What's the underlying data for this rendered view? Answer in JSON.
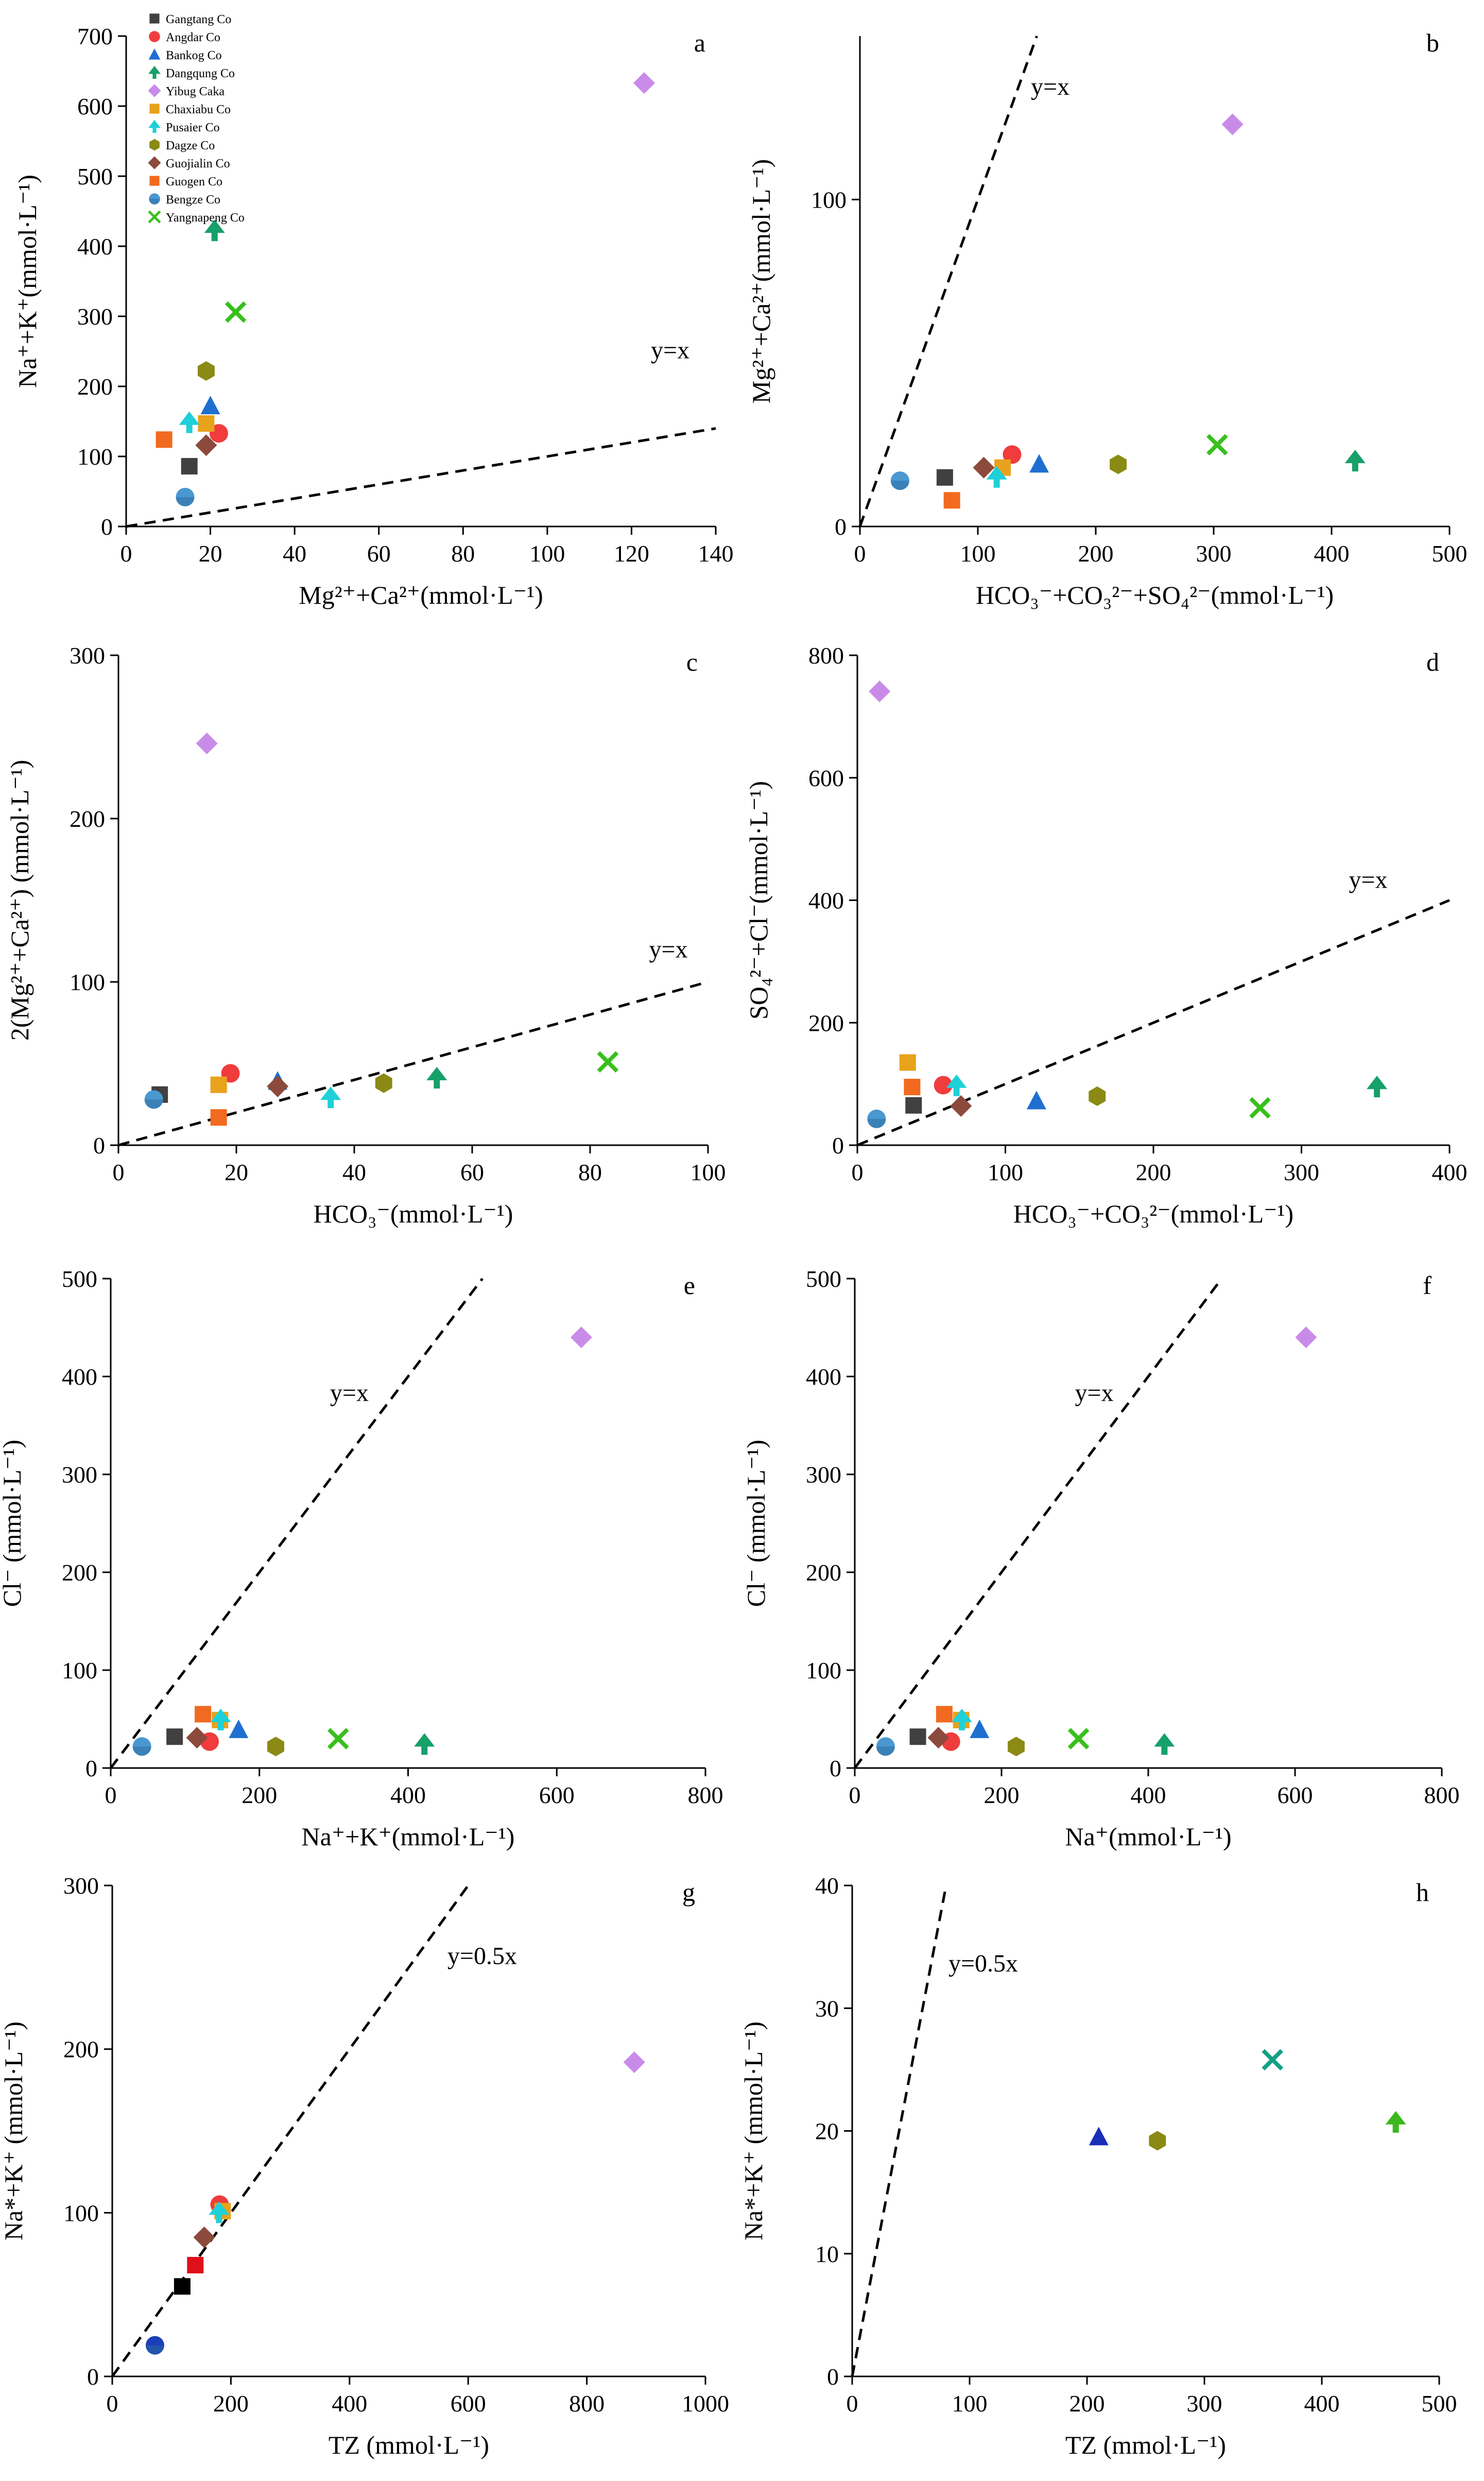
{
  "series": [
    {
      "name": "Gangtang Co",
      "color": "#404040",
      "marker": "square"
    },
    {
      "name": "Angdar Co",
      "color": "#f03c3c",
      "marker": "circle"
    },
    {
      "name": "Bankog Co",
      "color": "#1f6fd1",
      "marker": "triangle"
    },
    {
      "name": "Dangqung Co",
      "color": "#16a06a",
      "marker": "arrow"
    },
    {
      "name": "Yibug Caka",
      "color": "#c98be8",
      "marker": "diamond"
    },
    {
      "name": "Chaxiabu Co",
      "color": "#e8a21c",
      "marker": "square"
    },
    {
      "name": "Pusaier Co",
      "color": "#1fd0d8",
      "marker": "arrow"
    },
    {
      "name": "Dagze Co",
      "color": "#8a8a14",
      "marker": "hexagon"
    },
    {
      "name": "Guojialin Co",
      "color": "#8c4a3c",
      "marker": "diamond"
    },
    {
      "name": "Guogen Co",
      "color": "#f26a1f",
      "marker": "square"
    },
    {
      "name": "Bengze Co",
      "color": "#4a98d0",
      "marker": "sphere"
    },
    {
      "name": "Yangnapeng Co",
      "color": "#38c01c",
      "marker": "x"
    }
  ],
  "chart_data": [
    {
      "panel": "a",
      "type": "scatter",
      "xlabel": "Mg²⁺+Ca²⁺(mmol·L⁻¹)",
      "ylabel": "Na⁺+K⁺(mmol·L⁻¹)",
      "xlim": [
        0,
        140
      ],
      "ylim": [
        0,
        700
      ],
      "xticks": [
        0,
        20,
        40,
        60,
        80,
        100,
        120,
        140
      ],
      "yticks": [
        0,
        100,
        200,
        300,
        400,
        500,
        600,
        700
      ],
      "line_label": "y=x",
      "line_slope": 1,
      "points": [
        {
          "series": "Gangtang Co",
          "x": 15,
          "y": 86
        },
        {
          "series": "Angdar Co",
          "x": 22,
          "y": 133
        },
        {
          "series": "Bankog Co",
          "x": 20,
          "y": 172
        },
        {
          "series": "Dangqung Co",
          "x": 21,
          "y": 422
        },
        {
          "series": "Yibug Caka",
          "x": 123,
          "y": 633
        },
        {
          "series": "Chaxiabu Co",
          "x": 19,
          "y": 147
        },
        {
          "series": "Pusaier Co",
          "x": 15,
          "y": 148
        },
        {
          "series": "Dagze Co",
          "x": 19,
          "y": 222
        },
        {
          "series": "Guojialin Co",
          "x": 19,
          "y": 116
        },
        {
          "series": "Guogen Co",
          "x": 9,
          "y": 124
        },
        {
          "series": "Bengze Co",
          "x": 14,
          "y": 42
        },
        {
          "series": "Yangnapeng Co",
          "x": 26,
          "y": 306
        }
      ]
    },
    {
      "panel": "b",
      "type": "scatter",
      "xlabel": "HCO₃⁻+CO₃²⁻+SO₄²⁻(mmol·L⁻¹)",
      "ylabel": "Mg²⁺+Ca²⁺(mmol·L⁻¹)",
      "xlim": [
        0,
        500
      ],
      "ylim": [
        0,
        150
      ],
      "xticks": [
        0,
        100,
        200,
        300,
        400,
        500
      ],
      "yticks": [
        0,
        100
      ],
      "line_label": "y=x",
      "line_slope": 1,
      "points": [
        {
          "series": "Gangtang Co",
          "x": 72,
          "y": 15
        },
        {
          "series": "Angdar Co",
          "x": 129,
          "y": 22
        },
        {
          "series": "Bankog Co",
          "x": 152,
          "y": 19
        },
        {
          "series": "Dangqung Co",
          "x": 420,
          "y": 20
        },
        {
          "series": "Yibug Caka",
          "x": 316,
          "y": 123
        },
        {
          "series": "Chaxiabu Co",
          "x": 121,
          "y": 18
        },
        {
          "series": "Pusaier Co",
          "x": 116,
          "y": 15
        },
        {
          "series": "Dagze Co",
          "x": 219,
          "y": 19
        },
        {
          "series": "Guojialin Co",
          "x": 105,
          "y": 18
        },
        {
          "series": "Guogen Co",
          "x": 78,
          "y": 8
        },
        {
          "series": "Bengze Co",
          "x": 34,
          "y": 14
        },
        {
          "series": "Yangnapeng Co",
          "x": 303,
          "y": 25
        }
      ]
    },
    {
      "panel": "c",
      "type": "scatter",
      "xlabel": "HCO₃⁻(mmol·L⁻¹)",
      "ylabel": "2(Mg²⁺+Ca²⁺) (mmol·L⁻¹)",
      "xlim": [
        0,
        100
      ],
      "ylim": [
        0,
        300
      ],
      "xticks": [
        0,
        20,
        40,
        60,
        80,
        100
      ],
      "yticks": [
        0,
        100,
        200,
        300
      ],
      "line_label": "y=x",
      "line_slope": 1,
      "points": [
        {
          "series": "Gangtang Co",
          "x": 7,
          "y": 31
        },
        {
          "series": "Angdar Co",
          "x": 19,
          "y": 44
        },
        {
          "series": "Bankog Co",
          "x": 27,
          "y": 39
        },
        {
          "series": "Dangqung Co",
          "x": 54,
          "y": 41
        },
        {
          "series": "Yibug Caka",
          "x": 15,
          "y": 246
        },
        {
          "series": "Chaxiabu Co",
          "x": 17,
          "y": 37
        },
        {
          "series": "Pusaier Co",
          "x": 36,
          "y": 29
        },
        {
          "series": "Dagze Co",
          "x": 45,
          "y": 38
        },
        {
          "series": "Guojialin Co",
          "x": 27,
          "y": 36
        },
        {
          "series": "Guogen Co",
          "x": 17,
          "y": 17
        },
        {
          "series": "Bengze Co",
          "x": 6,
          "y": 28
        },
        {
          "series": "Yangnapeng Co",
          "x": 83,
          "y": 51
        }
      ]
    },
    {
      "panel": "d",
      "type": "scatter",
      "xlabel": "HCO₃⁻+CO₃²⁻(mmol·L⁻¹)",
      "ylabel": "SO₄²⁻+Cl⁻(mmol·L⁻¹)",
      "xlim": [
        0,
        400
      ],
      "ylim": [
        0,
        800
      ],
      "xticks": [
        0,
        100,
        200,
        300,
        400
      ],
      "yticks": [
        0,
        200,
        400,
        600,
        800
      ],
      "line_label": "y=x",
      "line_slope": 1,
      "points": [
        {
          "series": "Gangtang Co",
          "x": 38,
          "y": 65
        },
        {
          "series": "Angdar Co",
          "x": 58,
          "y": 98
        },
        {
          "series": "Bankog Co",
          "x": 121,
          "y": 72
        },
        {
          "series": "Dangqung Co",
          "x": 351,
          "y": 95
        },
        {
          "series": "Yibug Caka",
          "x": 15,
          "y": 741
        },
        {
          "series": "Chaxiabu Co",
          "x": 34,
          "y": 135
        },
        {
          "series": "Pusaier Co",
          "x": 67,
          "y": 97
        },
        {
          "series": "Dagze Co",
          "x": 162,
          "y": 80
        },
        {
          "series": "Guojialin Co",
          "x": 70,
          "y": 64
        },
        {
          "series": "Guogen Co",
          "x": 37,
          "y": 95
        },
        {
          "series": "Bengze Co",
          "x": 13,
          "y": 43
        },
        {
          "series": "Yangnapeng Co",
          "x": 272,
          "y": 61
        }
      ]
    },
    {
      "panel": "e",
      "type": "scatter",
      "xlabel": "Na⁺+K⁺(mmol·L⁻¹)",
      "ylabel": "Cl⁻ (mmol·L⁻¹)",
      "xlim": [
        0,
        800
      ],
      "ylim": [
        0,
        500
      ],
      "xticks": [
        0,
        200,
        400,
        600,
        800
      ],
      "yticks": [
        0,
        100,
        200,
        300,
        400,
        500
      ],
      "line_label": "y=x",
      "line_slope": 1,
      "points": [
        {
          "series": "Gangtang Co",
          "x": 86,
          "y": 32
        },
        {
          "series": "Angdar Co",
          "x": 133,
          "y": 27
        },
        {
          "series": "Bankog Co",
          "x": 172,
          "y": 39
        },
        {
          "series": "Dangqung Co",
          "x": 422,
          "y": 24
        },
        {
          "series": "Yibug Caka",
          "x": 633,
          "y": 440
        },
        {
          "series": "Chaxiabu Co",
          "x": 147,
          "y": 49
        },
        {
          "series": "Pusaier Co",
          "x": 148,
          "y": 49
        },
        {
          "series": "Dagze Co",
          "x": 222,
          "y": 22
        },
        {
          "series": "Guojialin Co",
          "x": 116,
          "y": 31
        },
        {
          "series": "Guogen Co",
          "x": 124,
          "y": 55
        },
        {
          "series": "Bengze Co",
          "x": 42,
          "y": 22
        },
        {
          "series": "Yangnapeng Co",
          "x": 306,
          "y": 30
        }
      ]
    },
    {
      "panel": "f",
      "type": "scatter",
      "xlabel": "Na⁺(mmol·L⁻¹)",
      "ylabel": "Cl⁻ (mmol·L⁻¹)",
      "xlim": [
        0,
        800
      ],
      "ylim": [
        0,
        500
      ],
      "xticks": [
        0,
        200,
        400,
        600,
        800
      ],
      "yticks": [
        0,
        100,
        200,
        300,
        400,
        500
      ],
      "line_label": "y=x",
      "line_slope": 1,
      "points": [
        {
          "series": "Gangtang Co",
          "x": 86,
          "y": 32
        },
        {
          "series": "Angdar Co",
          "x": 131,
          "y": 27
        },
        {
          "series": "Bankog Co",
          "x": 170,
          "y": 39
        },
        {
          "series": "Dangqung Co",
          "x": 422,
          "y": 24
        },
        {
          "series": "Yibug Caka",
          "x": 615,
          "y": 440
        },
        {
          "series": "Chaxiabu Co",
          "x": 145,
          "y": 49
        },
        {
          "series": "Pusaier Co",
          "x": 146,
          "y": 49
        },
        {
          "series": "Dagze Co",
          "x": 220,
          "y": 22
        },
        {
          "series": "Guojialin Co",
          "x": 114,
          "y": 31
        },
        {
          "series": "Guogen Co",
          "x": 122,
          "y": 55
        },
        {
          "series": "Bengze Co",
          "x": 42,
          "y": 22
        },
        {
          "series": "Yangnapeng Co",
          "x": 305,
          "y": 30
        }
      ]
    },
    {
      "panel": "g",
      "type": "scatter",
      "xlabel": "TZ (mmol·L⁻¹)",
      "ylabel": "Na*+K⁺ (mmol·L⁻¹)",
      "xlim": [
        0,
        1000
      ],
      "ylim": [
        0,
        300
      ],
      "xticks": [
        0,
        200,
        400,
        600,
        800,
        1000
      ],
      "yticks": [
        0,
        100,
        200,
        300
      ],
      "line_label": "y=0.5x",
      "line_slope": 0.5,
      "points": [
        {
          "series": "Gangtang Co",
          "x": 118,
          "y": 55,
          "color": "#000000"
        },
        {
          "series": "Angdar Co",
          "x": 181,
          "y": 105
        },
        {
          "series": "Yibug Caka",
          "x": 880,
          "y": 192
        },
        {
          "series": "Chaxiabu Co",
          "x": 186,
          "y": 101
        },
        {
          "series": "Pusaier Co",
          "x": 180,
          "y": 100
        },
        {
          "series": "Guojialin Co",
          "x": 155,
          "y": 85
        },
        {
          "series": "Guogen Co",
          "x": 140,
          "y": 68,
          "color": "#e0101a"
        },
        {
          "series": "Bengze Co",
          "x": 72,
          "y": 19,
          "color": "#1c3fb8"
        }
      ]
    },
    {
      "panel": "h",
      "type": "scatter",
      "xlabel": "TZ (mmol·L⁻¹)",
      "ylabel": "Na*+K⁺ (mmol·L⁻¹)",
      "xlim": [
        0,
        500
      ],
      "ylim": [
        0,
        40
      ],
      "xticks": [
        0,
        100,
        200,
        300,
        400,
        500
      ],
      "yticks": [
        0,
        10,
        20,
        30,
        40
      ],
      "line_label": "y=0.5x",
      "line_slope": 0.5,
      "points": [
        {
          "series": "Bankog Co",
          "x": 210,
          "y": 19.5,
          "color": "#1a2eb8"
        },
        {
          "series": "Dagze Co",
          "x": 260,
          "y": 19.2
        },
        {
          "series": "Yangnapeng Co",
          "x": 358,
          "y": 25.8,
          "color": "#14a085"
        },
        {
          "series": "Dangqung Co",
          "x": 463,
          "y": 20.7,
          "color": "#3cb81c"
        }
      ]
    }
  ]
}
